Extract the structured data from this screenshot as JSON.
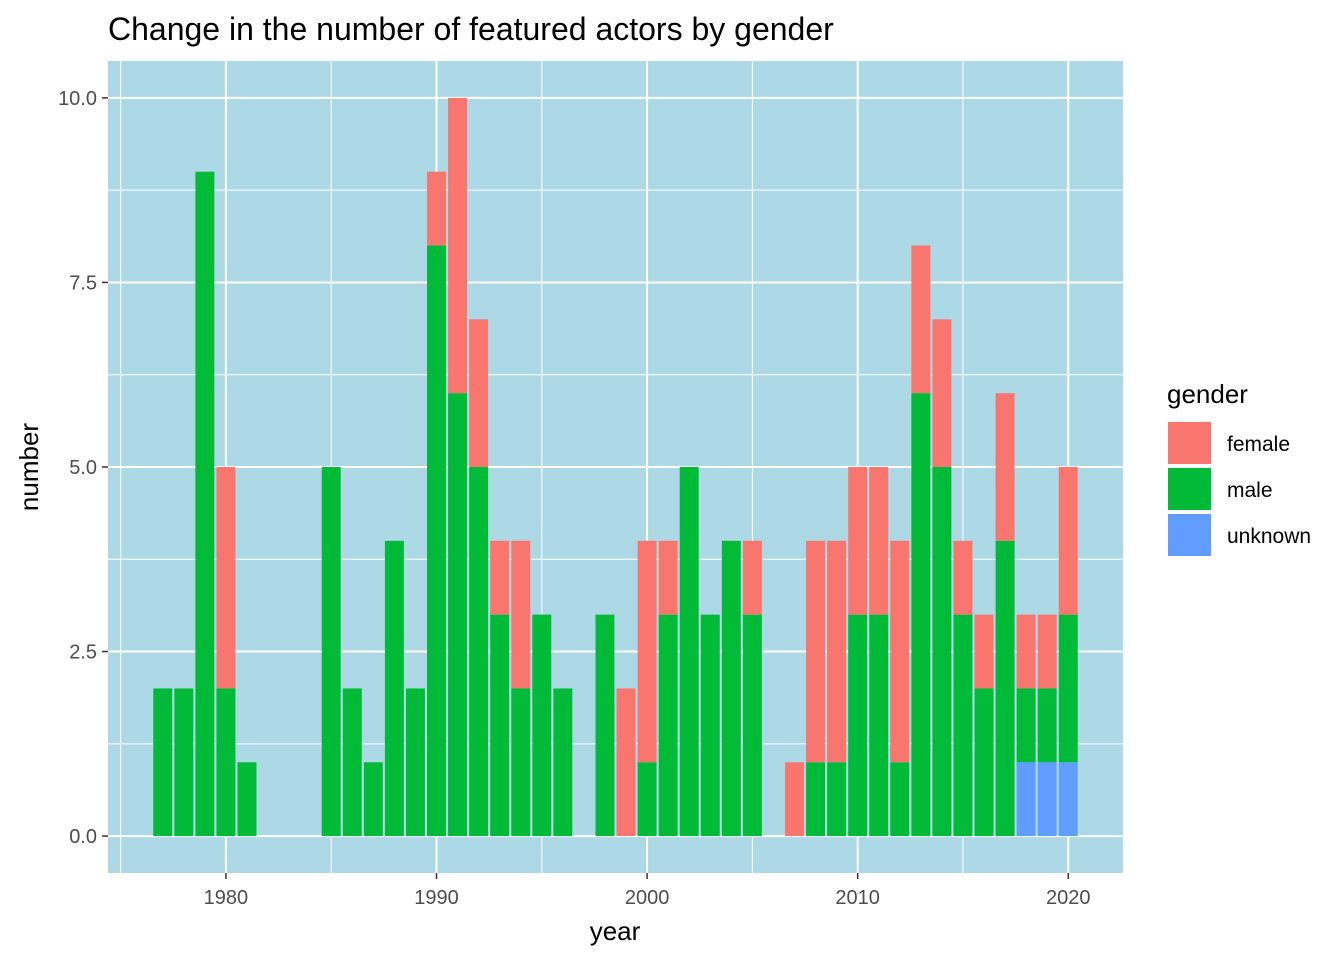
{
  "chart_data": {
    "type": "bar",
    "stacked": true,
    "title": "Change in the number of featured actors by gender",
    "xlabel": "year",
    "ylabel": "number",
    "xlim": [
      1974.4,
      1922.6
    ],
    "ylim": [
      -0.5,
      10.5
    ],
    "x_ticks": [
      1980,
      1990,
      2000,
      2010,
      2020
    ],
    "y_ticks": [
      0,
      2.5,
      5,
      7.5,
      10
    ],
    "y_tick_labels": [
      "0.0",
      "2.5",
      "5.0",
      "7.5",
      "10.0"
    ],
    "grid": true,
    "panel_background": "#add8e6",
    "legend_title": "gender",
    "legend_position": "right",
    "x": [
      1977,
      1978,
      1979,
      1980,
      1981,
      1985,
      1986,
      1987,
      1988,
      1989,
      1990,
      1991,
      1992,
      1993,
      1994,
      1995,
      1996,
      1998,
      1999,
      2000,
      2001,
      2002,
      2003,
      2004,
      2005,
      2007,
      2008,
      2009,
      2010,
      2011,
      2012,
      2013,
      2014,
      2015,
      2016,
      2017,
      2018,
      2019,
      2020
    ],
    "series": [
      {
        "name": "female",
        "color": "#f8766d",
        "values": [
          0,
          0,
          0,
          3,
          0,
          0,
          0,
          0,
          0,
          0,
          1,
          4,
          2,
          1,
          2,
          0,
          0,
          0,
          2,
          3,
          1,
          0,
          0,
          0,
          1,
          1,
          3,
          3,
          2,
          2,
          3,
          2,
          2,
          1,
          1,
          2,
          1,
          1,
          2
        ]
      },
      {
        "name": "male",
        "color": "#00ba38",
        "values": [
          2,
          2,
          9,
          2,
          1,
          5,
          2,
          1,
          4,
          2,
          8,
          6,
          5,
          3,
          2,
          3,
          2,
          3,
          0,
          1,
          3,
          5,
          3,
          4,
          3,
          0,
          1,
          1,
          3,
          3,
          1,
          6,
          5,
          3,
          2,
          4,
          1,
          1,
          2
        ]
      },
      {
        "name": "unknown",
        "color": "#619cff",
        "values": [
          0,
          0,
          0,
          0,
          0,
          0,
          0,
          0,
          0,
          0,
          0,
          0,
          0,
          0,
          0,
          0,
          0,
          0,
          0,
          0,
          0,
          0,
          0,
          0,
          0,
          0,
          0,
          0,
          0,
          0,
          0,
          0,
          0,
          0,
          0,
          0,
          1,
          1,
          1
        ]
      }
    ]
  }
}
